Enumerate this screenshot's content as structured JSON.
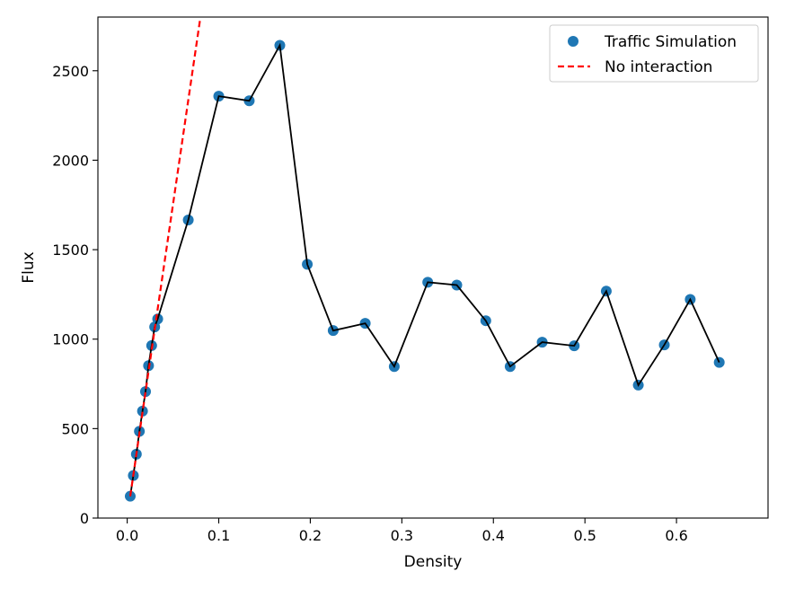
{
  "chart_data": {
    "type": "scatter",
    "title": "",
    "xlabel": "Density",
    "ylabel": "Flux",
    "xlim": [
      -0.032,
      0.7
    ],
    "ylim": [
      0,
      2800
    ],
    "xticks": [
      0.0,
      0.1,
      0.2,
      0.3,
      0.4,
      0.5,
      0.6
    ],
    "xtick_labels": [
      "0.0",
      "0.1",
      "0.2",
      "0.3",
      "0.4",
      "0.5",
      "0.6"
    ],
    "yticks": [
      0,
      500,
      1000,
      1500,
      2000,
      2500
    ],
    "ytick_labels": [
      "0",
      "500",
      "1000",
      "1500",
      "2000",
      "2500"
    ],
    "grid": false,
    "legend_position": "top-right",
    "series": [
      {
        "name": "Traffic Simulation",
        "kind": "scatter+line",
        "marker_color": "#1f77b4",
        "line_color": "#000000",
        "x": [
          0.0033,
          0.0067,
          0.01,
          0.0133,
          0.0167,
          0.02,
          0.0233,
          0.0267,
          0.03,
          0.0333,
          0.0667,
          0.1,
          0.1333,
          0.1667,
          0.1967,
          0.225,
          0.26,
          0.2917,
          0.3283,
          0.36,
          0.3917,
          0.4183,
          0.4533,
          0.4883,
          0.5233,
          0.5583,
          0.5867,
          0.615,
          0.6467
        ],
        "y": [
          122,
          238,
          357,
          485,
          598,
          707,
          852,
          964,
          1068,
          1113,
          1666,
          2358,
          2332,
          2642,
          1418,
          1048,
          1088,
          847,
          1318,
          1302,
          1103,
          847,
          983,
          963,
          1268,
          743,
          968,
          1222,
          870
        ]
      },
      {
        "name": "No interaction",
        "kind": "line",
        "line_color": "#ff0000",
        "dash": "dashed",
        "x": [
          0.0033,
          0.08
        ],
        "y": [
          122,
          2800
        ]
      }
    ]
  }
}
